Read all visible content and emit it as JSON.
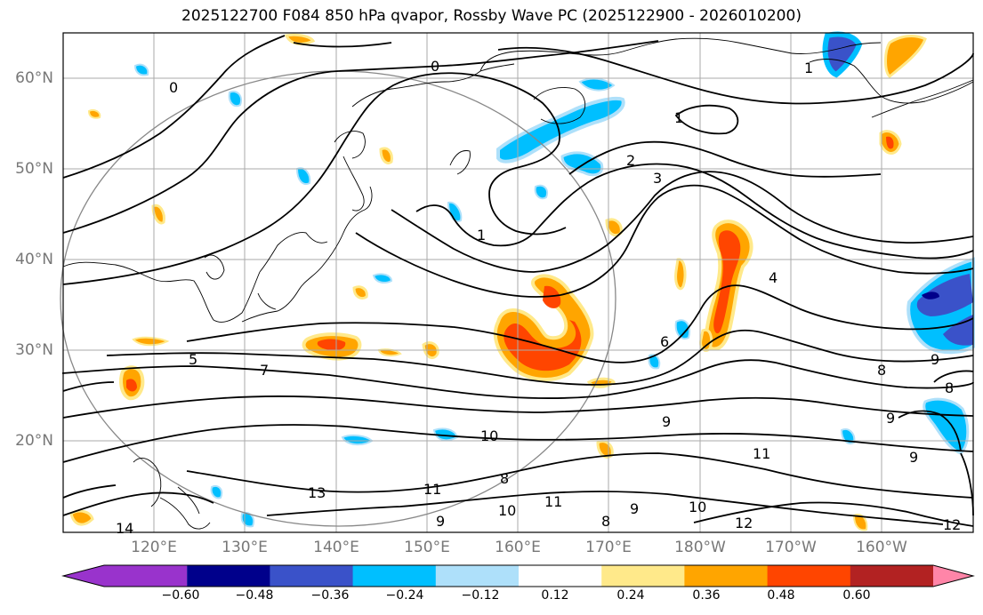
{
  "title": "2025122700 F084 850 hPa qvapor, Rossby Wave PC (2025122900 - 2026010200)",
  "lat_labels": [
    "60°N",
    "50°N",
    "40°N",
    "30°N",
    "20°N"
  ],
  "lon_labels": [
    "120°E",
    "130°E",
    "140°E",
    "150°E",
    "160°E",
    "170°E",
    "180°W",
    "170°W",
    "160°W"
  ],
  "colorbar": {
    "tick_labels": [
      "−0.60",
      "−0.48",
      "−0.36",
      "−0.24",
      "−0.12",
      "0.12",
      "0.24",
      "0.36",
      "0.48",
      "0.60"
    ],
    "colors": [
      "#9933cc",
      "#00008b",
      "#3a52c9",
      "#00bfff",
      "#aee0fa",
      "#ffffff",
      "#ffe98a",
      "#ffa500",
      "#ff4500",
      "#b22222",
      "#ff85a8"
    ]
  },
  "contour_labels": [
    "0",
    "0",
    "1",
    "1",
    "1",
    "2",
    "3",
    "4",
    "5",
    "6",
    "7",
    "8",
    "8",
    "9",
    "9",
    "9",
    "9",
    "9",
    "10",
    "10",
    "10",
    "11",
    "11",
    "11",
    "12",
    "12",
    "13",
    "14",
    "8",
    "8",
    "9"
  ],
  "colors": {
    "orange": "#ffa500",
    "red_orange": "#ff4500",
    "yellow": "#ffe98a",
    "sky": "#00bfff",
    "royal": "#3a52c9",
    "navy": "#00008b",
    "brown": "#b22222"
  }
}
